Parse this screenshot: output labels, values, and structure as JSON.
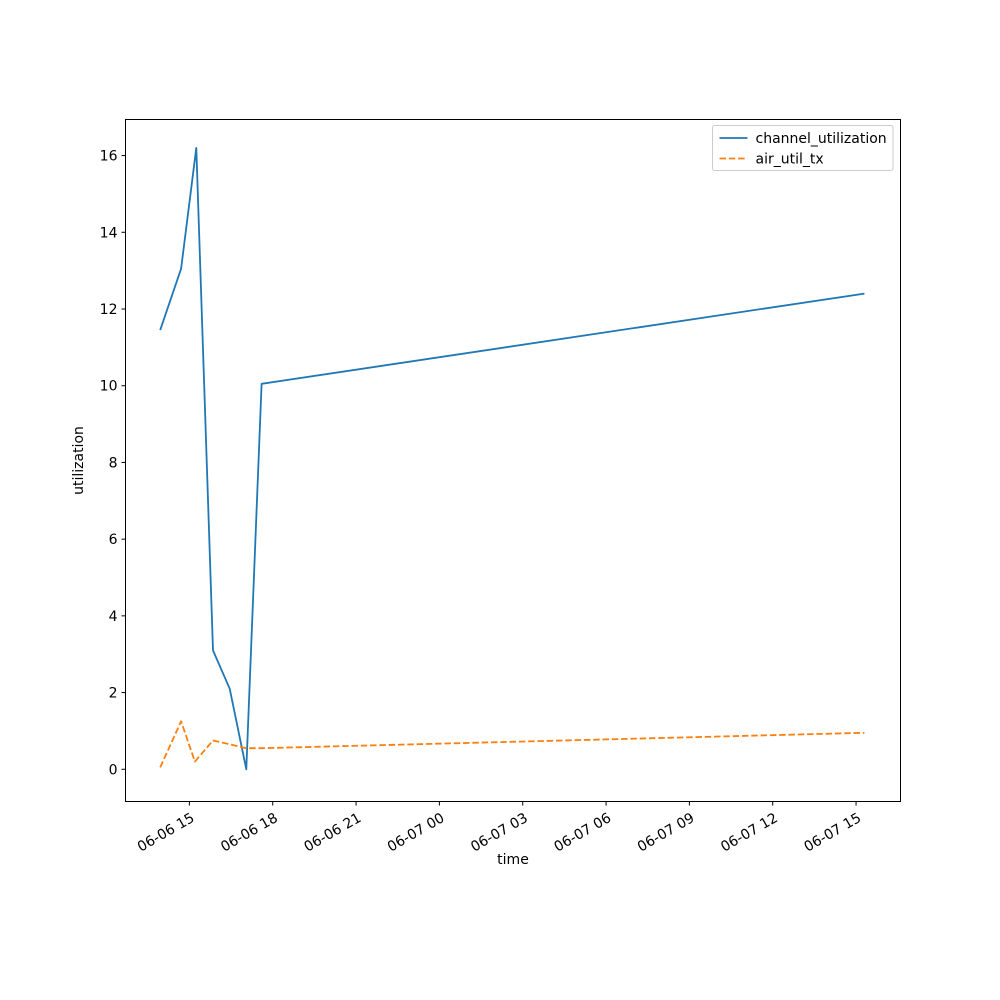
{
  "figure": {
    "background": "#ffffff"
  },
  "chart_data": {
    "type": "line",
    "title": "",
    "xlabel": "time",
    "ylabel": "utilization",
    "x_encoding": "hours since 06-06 00:00, shown as MM-DD HH tick labels",
    "xlim": [
      12.7,
      40.6
    ],
    "ylim": [
      -0.84,
      16.94
    ],
    "grid": false,
    "axis_color": "#000000",
    "yticks": [
      0,
      2,
      4,
      6,
      8,
      10,
      12,
      14,
      16
    ],
    "xticks": {
      "values": [
        15,
        18,
        21,
        24,
        27,
        30,
        33,
        36,
        39
      ],
      "labels": [
        "06-06 15",
        "06-06 18",
        "06-06 21",
        "06-07 00",
        "06-07 03",
        "06-07 06",
        "06-07 09",
        "06-07 12",
        "06-07 15"
      ],
      "rotation_deg": 30
    },
    "legend": {
      "position": "upper right",
      "background": "#ffffff",
      "border_color": "#cccccc"
    },
    "series": [
      {
        "name": "channel_utilization",
        "color": "#1f77b4",
        "line_style": "solid",
        "x": [
          13.95,
          14.7,
          15.25,
          15.85,
          16.45,
          17.05,
          17.6,
          39.3
        ],
        "y": [
          11.45,
          13.05,
          16.2,
          3.1,
          2.1,
          0.0,
          10.05,
          12.4
        ]
      },
      {
        "name": "air_util_tx",
        "color": "#ff7f0e",
        "line_style": "dashed",
        "x": [
          13.95,
          14.7,
          15.2,
          15.85,
          16.45,
          17.05,
          17.6,
          39.3
        ],
        "y": [
          0.05,
          1.25,
          0.2,
          0.75,
          0.65,
          0.55,
          0.55,
          0.95
        ]
      }
    ]
  }
}
